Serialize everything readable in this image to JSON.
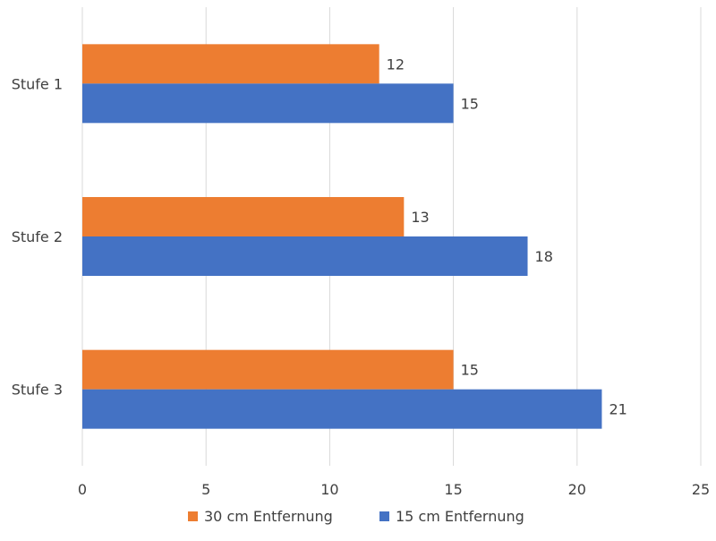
{
  "chart_data": {
    "type": "bar",
    "orientation": "horizontal",
    "categories": [
      "Stufe 1",
      "Stufe 2",
      "Stufe 3"
    ],
    "series": [
      {
        "name": "30 cm Entfernung",
        "values": [
          12,
          13,
          15
        ],
        "color": "#ED7D31"
      },
      {
        "name": "15 cm Entfernung",
        "values": [
          15,
          18,
          21
        ],
        "color": "#4472C4"
      }
    ],
    "xlim": [
      0,
      25
    ],
    "xticks": [
      "0",
      "5",
      "10",
      "15",
      "20",
      "25"
    ],
    "grid": true,
    "legend_position": "bottom",
    "data_labels": true
  }
}
